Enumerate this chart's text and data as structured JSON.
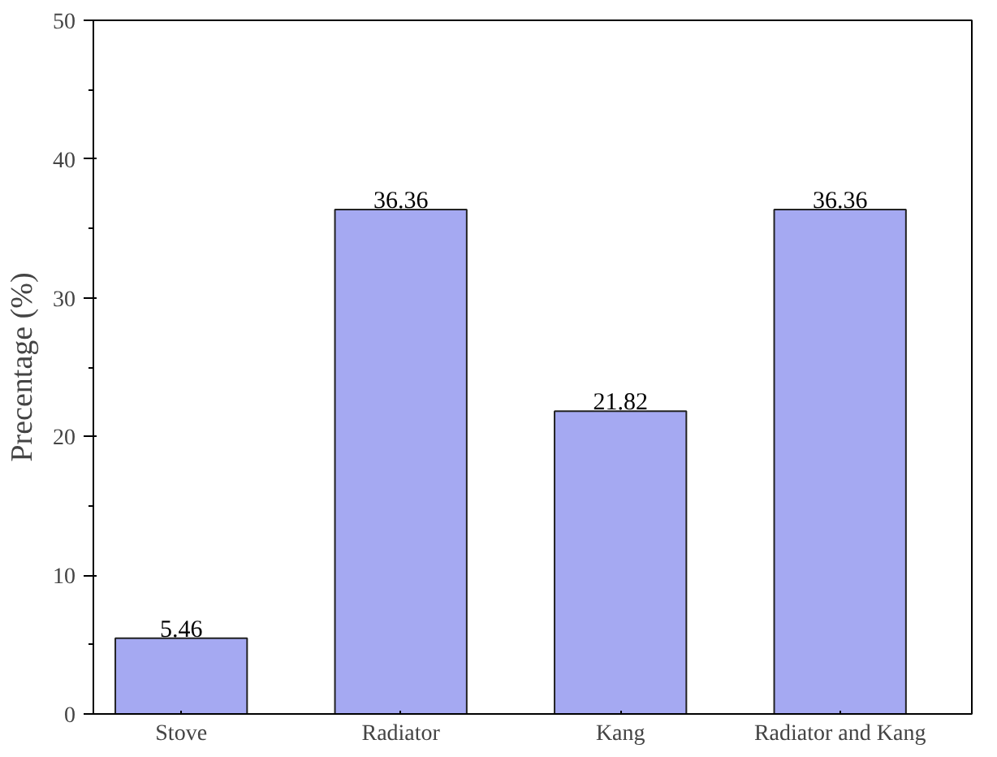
{
  "chart_data": {
    "type": "bar",
    "ylabel": "Precentage (%)",
    "categories": [
      "Stove",
      "Radiator",
      "Kang",
      "Radiator and Kang"
    ],
    "values": [
      5.46,
      36.36,
      21.82,
      36.36
    ],
    "color": "#a5a9f2",
    "ylim": [
      0,
      50
    ],
    "yticks": [
      0,
      10,
      20,
      30,
      40,
      50
    ],
    "grid": false,
    "data_labels": true
  }
}
